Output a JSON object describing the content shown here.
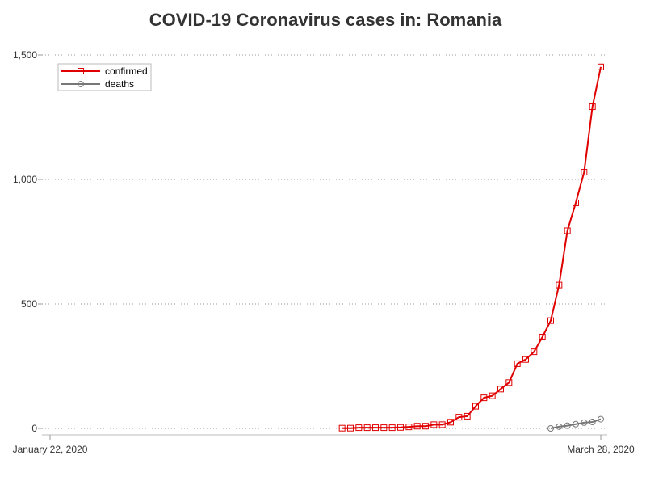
{
  "chart_data": {
    "type": "line",
    "title": "COVID-19 Coronavirus cases in: Romania",
    "xlabel": "",
    "ylabel": "",
    "x_start": "2020-01-22",
    "x_end": "2020-03-28",
    "x_tick_labels": [
      "January 22, 2020",
      "March 28, 2020"
    ],
    "y_ticks": [
      0,
      500,
      1000,
      1500
    ],
    "y_tick_labels": [
      "0",
      "500",
      "1,000",
      "1,500"
    ],
    "ylim": [
      0,
      1500
    ],
    "grid": "horizontal dotted",
    "legend_position": "top-left",
    "series": [
      {
        "name": "confirmed",
        "color": "#e00000",
        "marker": "square",
        "points": [
          [
            "2020-02-26",
            1
          ],
          [
            "2020-02-27",
            1
          ],
          [
            "2020-02-28",
            3
          ],
          [
            "2020-02-29",
            3
          ],
          [
            "2020-03-01",
            3
          ],
          [
            "2020-03-02",
            3
          ],
          [
            "2020-03-03",
            3
          ],
          [
            "2020-03-04",
            4
          ],
          [
            "2020-03-05",
            6
          ],
          [
            "2020-03-06",
            9
          ],
          [
            "2020-03-07",
            9
          ],
          [
            "2020-03-08",
            15
          ],
          [
            "2020-03-09",
            15
          ],
          [
            "2020-03-10",
            25
          ],
          [
            "2020-03-11",
            45
          ],
          [
            "2020-03-12",
            49
          ],
          [
            "2020-03-13",
            89
          ],
          [
            "2020-03-14",
            123
          ],
          [
            "2020-03-15",
            131
          ],
          [
            "2020-03-16",
            158
          ],
          [
            "2020-03-17",
            184
          ],
          [
            "2020-03-18",
            260
          ],
          [
            "2020-03-19",
            277
          ],
          [
            "2020-03-20",
            308
          ],
          [
            "2020-03-21",
            367
          ],
          [
            "2020-03-22",
            433
          ],
          [
            "2020-03-23",
            576
          ],
          [
            "2020-03-24",
            794
          ],
          [
            "2020-03-25",
            906
          ],
          [
            "2020-03-26",
            1029
          ],
          [
            "2020-03-27",
            1292
          ],
          [
            "2020-03-28",
            1452
          ]
        ]
      },
      {
        "name": "deaths",
        "color": "#777777",
        "marker": "circle",
        "points": [
          [
            "2020-03-22",
            0
          ],
          [
            "2020-03-23",
            7
          ],
          [
            "2020-03-24",
            11
          ],
          [
            "2020-03-25",
            17
          ],
          [
            "2020-03-26",
            23
          ],
          [
            "2020-03-27",
            26
          ],
          [
            "2020-03-28",
            37
          ]
        ]
      }
    ]
  }
}
